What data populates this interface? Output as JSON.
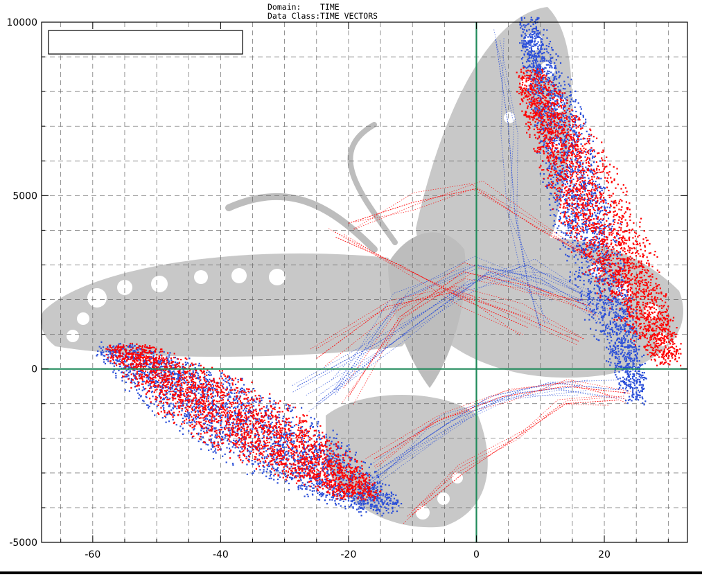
{
  "header": {
    "domain_label": "Domain:",
    "domain_value": "TIME",
    "class_label": "Data Class:",
    "class_value": "TIME VECTORS"
  },
  "chart_data": {
    "type": "scatter",
    "title": "",
    "xlabel": "",
    "ylabel": "",
    "xlim": [
      -68,
      33
    ],
    "ylim": [
      -5000,
      10000
    ],
    "x_ticks": [
      -60,
      -40,
      -20,
      0,
      20
    ],
    "x_tick_labels": [
      "-60",
      "-40",
      "-20",
      "0",
      "20"
    ],
    "y_ticks": [
      -5000,
      0,
      5000,
      10000
    ],
    "y_tick_labels": [
      "-5000",
      "0",
      "5000",
      "10000"
    ],
    "grid": true,
    "legend": "top-left (empty box)",
    "zero_axes_color": "#1f8a5a",
    "background_watermark": "butterfly",
    "series": [
      {
        "color": "#2b4fd8",
        "clusters": [
          {
            "x": [
              -56,
              -15
            ],
            "y": [
              600,
              -4000
            ]
          },
          {
            "x": [
              8,
              25
            ],
            "y": [
              9800,
              -600
            ]
          }
        ],
        "trails": [
          [
            [
              -22,
              -600
            ],
            [
              -12,
              2000
            ],
            [
              0,
              3000
            ],
            [
              10,
              2600
            ],
            [
              20,
              1500
            ]
          ],
          [
            [
              -18,
              -3500
            ],
            [
              -8,
              -2000
            ],
            [
              2,
              -800
            ],
            [
              12,
              -400
            ],
            [
              22,
              -600
            ]
          ],
          [
            [
              -25,
              -1000
            ],
            [
              -10,
              1200
            ],
            [
              2,
              2800
            ],
            [
              12,
              2200
            ]
          ],
          [
            [
              -16,
              -3000
            ],
            [
              -4,
              -1500
            ],
            [
              6,
              -700
            ],
            [
              16,
              -500
            ]
          ],
          [
            [
              3,
              9500
            ],
            [
              5,
              7000
            ],
            [
              6,
              4500
            ],
            [
              8,
              2500
            ],
            [
              10,
              1200
            ]
          ],
          [
            [
              -28,
              -500
            ],
            [
              -15,
              800
            ],
            [
              -2,
              2400
            ],
            [
              8,
              3000
            ],
            [
              18,
              2000
            ]
          ]
        ]
      },
      {
        "color": "#ff0000",
        "clusters": [
          {
            "x": [
              -55,
              -18
            ],
            "y": [
              600,
              -3600
            ]
          },
          {
            "x": [
              8,
              30
            ],
            "y": [
              8400,
              400
            ]
          }
        ],
        "trails": [
          [
            [
              -20,
              -800
            ],
            [
              -12,
              1500
            ],
            [
              -2,
              2800
            ],
            [
              8,
              2400
            ],
            [
              18,
              1800
            ]
          ],
          [
            [
              -20,
              4200
            ],
            [
              -10,
              4800
            ],
            [
              0,
              5200
            ],
            [
              10,
              4000
            ],
            [
              20,
              3000
            ]
          ],
          [
            [
              -16,
              -2600
            ],
            [
              -6,
              -1500
            ],
            [
              4,
              -800
            ],
            [
              14,
              -500
            ],
            [
              24,
              -700
            ]
          ],
          [
            [
              -25,
              300
            ],
            [
              -14,
              1800
            ],
            [
              -4,
              2200
            ],
            [
              6,
              1600
            ],
            [
              16,
              800
            ]
          ],
          [
            [
              -10,
              -4200
            ],
            [
              -2,
              -3000
            ],
            [
              6,
              -2000
            ],
            [
              14,
              -1000
            ],
            [
              22,
              -900
            ]
          ],
          [
            [
              -22,
              3800
            ],
            [
              -12,
              3000
            ],
            [
              -2,
              2000
            ],
            [
              8,
              1200
            ]
          ]
        ]
      }
    ]
  }
}
